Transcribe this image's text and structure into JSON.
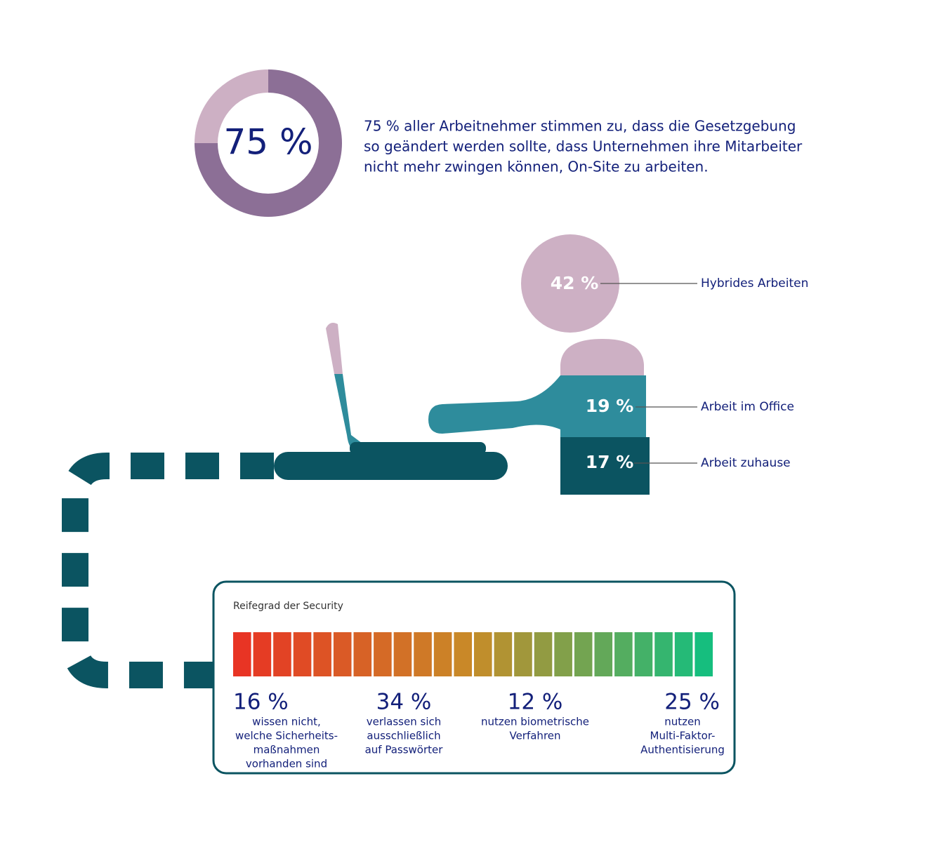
{
  "donut": {
    "value": 75,
    "label": "75 %",
    "text": [
      "75 % aller Arbeitnehmer stimmen zu, dass die Gesetzgebung",
      "so geändert werden sollte, dass Unternehmen ihre Mitarbeiter",
      "nicht mehr zwingen können, On-Site zu arbeiten."
    ]
  },
  "work_modes": [
    {
      "value": "42 %",
      "label": "Hybrides Arbeiten"
    },
    {
      "value": "19 %",
      "label": "Arbeit im Office"
    },
    {
      "value": "17 %",
      "label": "Arbeit zuhause"
    }
  ],
  "security": {
    "title": "Reifegrad der Security",
    "stats": [
      {
        "value": "16 %",
        "text": [
          "wissen nicht,",
          "welche Sicherheits-",
          "maßnahmen",
          "vorhanden sind"
        ]
      },
      {
        "value": "34 %",
        "text": [
          "verlassen sich",
          "ausschließlich",
          "auf Passwörter"
        ]
      },
      {
        "value": "12 %",
        "text": [
          "nutzen biometrische",
          "Verfahren"
        ]
      },
      {
        "value": "25 %",
        "text": [
          "nutzen",
          "Multi-Faktor-",
          "Authentisierung"
        ]
      }
    ]
  }
}
